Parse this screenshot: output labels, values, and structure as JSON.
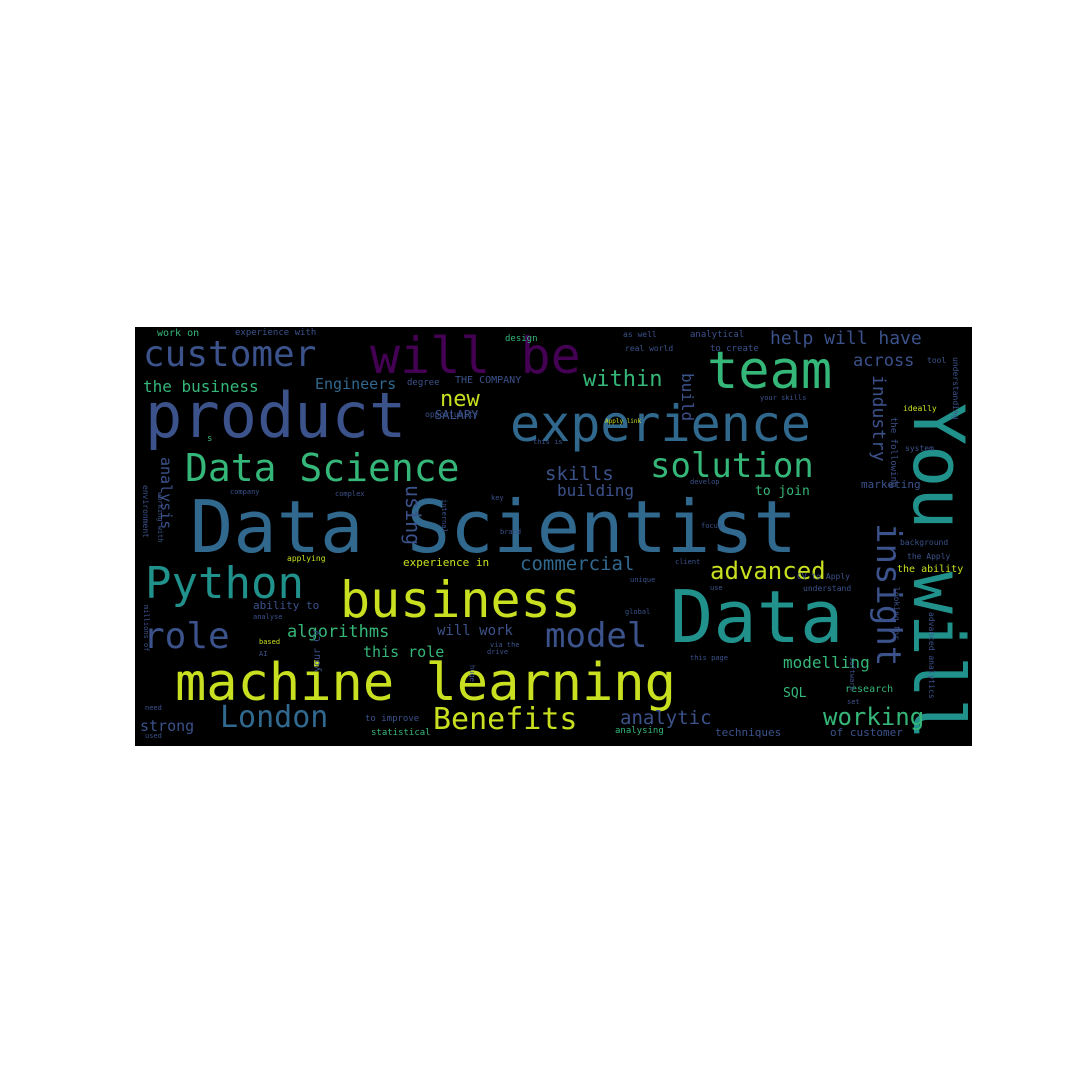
{
  "colors": {
    "background": "#000000",
    "purple": "#440154",
    "indigo": "#3b528b",
    "blue": "#31688e",
    "teal": "#21918c",
    "green": "#35b779",
    "lime": "#90d743",
    "yellow": "#c8e020"
  },
  "words": {
    "data_scientist": "Data Scientist",
    "data": "Data",
    "you_will": "You will",
    "product": "product",
    "machine_learning": "machine learning",
    "experience": "experience",
    "business": "business",
    "team": "team",
    "will_be": "will be",
    "data_science": "Data Science",
    "python": "Python",
    "customer": "customer",
    "solution": "solution",
    "insight": "insight",
    "role": "role",
    "model": "model",
    "london": "London",
    "benefits": "Benefits",
    "within": "within",
    "advanced": "advanced",
    "working": "working",
    "new": "new",
    "commercial": "commercial",
    "algorithms": "algorithms",
    "skills": "skills",
    "help_will_have": "help will have",
    "across": "across",
    "industry": "industry",
    "using": "using",
    "build": "build",
    "building": "building",
    "analytic": "analytic",
    "modelling": "modelling",
    "the_business": "the business",
    "engineers": "Engineers",
    "analysis": "analysis",
    "strong": "strong",
    "this_role": "this role",
    "will_work": "will work",
    "sql": "SQL",
    "to_join": "to join",
    "salary": "SALARY",
    "the_company": "THE COMPANY",
    "experience_in": "experience in",
    "work_on": "work on",
    "experience_with": "experience with",
    "design": "design",
    "as_well": "as well",
    "analytical": "analytical",
    "to_create": "to create",
    "real_world": "real world",
    "degree": "degree",
    "opportunity": "opportunity",
    "tool": "tool",
    "ideally": "ideally",
    "system": "system",
    "understanding": "understanding",
    "marketing": "marketing",
    "background": "background",
    "the_following": "the following",
    "the_ability": "the ability",
    "the_apply": "the Apply",
    "cv_to_apply": "CV to Apply",
    "understand": "understand",
    "looking_for": "looking for",
    "advanced_analytics": "advanced analytics",
    "research": "research",
    "techniques": "techniques",
    "of_customer": "of customer",
    "environment": "environment",
    "working_with": "working with",
    "millions_of": "millions of",
    "ability_to": "ability to",
    "analyse": "analyse",
    "your_cv": "your CV",
    "based": "based",
    "ai": "AI",
    "need": "need",
    "used": "used",
    "to_improve": "to improve",
    "statistical": "statistical",
    "analysing": "analysing",
    "complex": "complex",
    "internal": "internal",
    "key": "key",
    "brand": "brand",
    "drive": "drive",
    "client": "client",
    "unique": "unique",
    "use": "use",
    "global": "global",
    "focus": "focus",
    "develop": "develop",
    "company": "company",
    "applying": "applying",
    "this_page": "this page",
    "via_the": "via the",
    "this_is": "this is",
    "apply_link": "Apply link",
    "your_skills": "your skills",
    "huge": "huge",
    "software": "software",
    "set": "set",
    "s": "s"
  }
}
